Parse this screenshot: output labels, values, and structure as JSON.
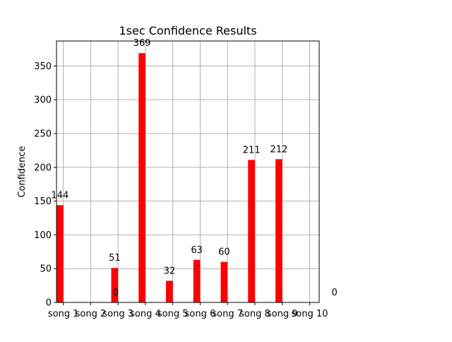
{
  "chart_data": {
    "type": "bar",
    "title": "1sec Confidence Results",
    "xlabel": "",
    "ylabel": "Confidence",
    "categories": [
      "song 1",
      "song 2",
      "song 3",
      "song 4",
      "song 5",
      "song 6",
      "song 7",
      "song 8",
      "song 9",
      "song 10"
    ],
    "values": [
      144,
      0,
      51,
      369,
      32,
      63,
      60,
      211,
      212,
      0
    ],
    "data_labels": [
      "144",
      "0",
      "51",
      "369",
      "32",
      "63",
      "60",
      "211",
      "212",
      "0"
    ],
    "yticks": [
      0,
      50,
      100,
      150,
      200,
      250,
      300,
      350
    ],
    "ylim": [
      0,
      387
    ],
    "xlim": [
      -0.25,
      9.35
    ],
    "bar_offset": -0.25,
    "bar_width": 0.25,
    "label_offset": 0.0,
    "grid": true,
    "bar_color": "#ff0000"
  }
}
